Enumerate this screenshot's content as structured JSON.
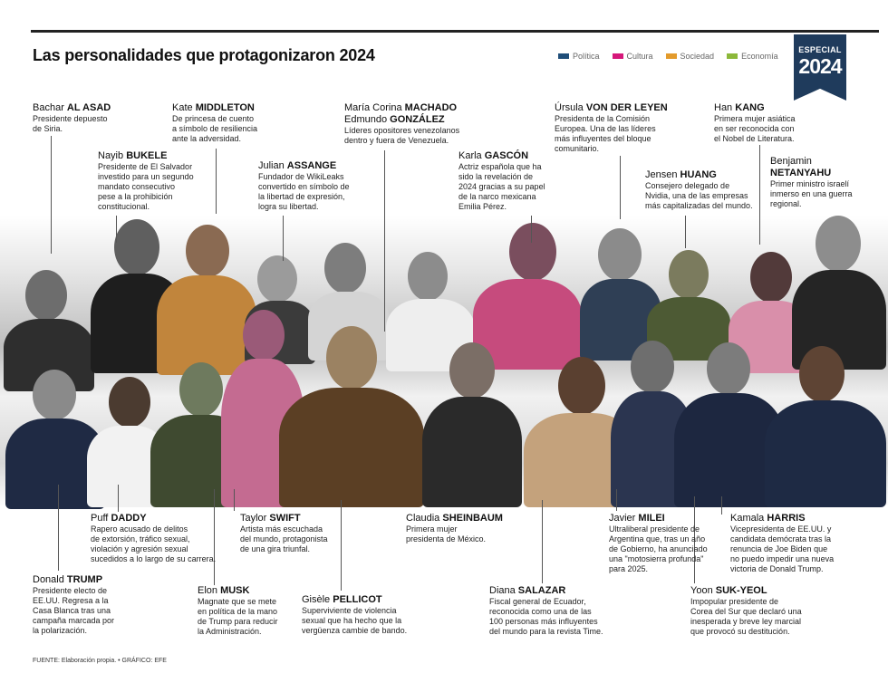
{
  "title": "Las personalidades que protagonizaron 2024",
  "legend": [
    {
      "label": "Política",
      "color": "#1f4e79"
    },
    {
      "label": "Cultura",
      "color": "#d6177a"
    },
    {
      "label": "Sociedad",
      "color": "#e39b2c"
    },
    {
      "label": "Economía",
      "color": "#8cb83a"
    }
  ],
  "badge": {
    "line1": "ESPECIAL",
    "line2": "2024"
  },
  "people": {
    "alasad": {
      "first": "Bachar ",
      "last": "AL ASAD",
      "desc": "Presidente depuesto\nde Siria."
    },
    "bukele": {
      "first": "Nayib ",
      "last": "BUKELE",
      "desc": "Presidente de El Salvador\ninvestido para un segundo\nmandato consecutivo\npese a la prohibición\nconstitucional."
    },
    "middleton": {
      "first": "Kate ",
      "last": "MIDDLETON",
      "desc": "De princesa de cuento\na símbolo de resiliencia\nante la adversidad."
    },
    "assange": {
      "first": "Julian ",
      "last": "ASSANGE",
      "desc": "Fundador de WikiLeaks\nconvertido en símbolo de\nla libertad de expresión,\nlogra su libertad."
    },
    "machado": {
      "first": "María Corina ",
      "last": "MACHADO",
      "first2": "Edmundo ",
      "last2": "GONZÁLEZ",
      "desc": "Líderes opositores venezolanos\ndentro y fuera de Venezuela."
    },
    "gascon": {
      "first": "Karla ",
      "last": "GASCÓN",
      "desc": "Actriz española que ha\nsido la revelación de\n2024 gracias a su papel\nde la narco mexicana\nEmilia Pérez."
    },
    "vonderleyen": {
      "first": "Úrsula ",
      "last": "VON DER LEYEN",
      "desc": "Presidenta de la Comisión\nEuropea. Una de las líderes\nmás influyentes del bloque\ncomunitario."
    },
    "huang": {
      "first": "Jensen ",
      "last": "HUANG",
      "desc": "Consejero delegado de\nNvidia, una de las empresas\nmás capitalizadas del mundo."
    },
    "hankang": {
      "first": "Han ",
      "last": "KANG",
      "desc": "Primera mujer asiática\nen ser reconocida con\nel Nobel de Literatura."
    },
    "netanyahu": {
      "first": "Benjamin",
      "last": "NETANYAHU",
      "desc": "Primer ministro israelí\ninmerso en una guerra\nregional."
    },
    "daddy": {
      "first": "Puff ",
      "last": "DADDY",
      "desc": "Rapero acusado de delitos\nde extorsión, tráfico sexual,\nviolación y agresión sexual\nsucedidos a lo largo de su carrera."
    },
    "trump": {
      "first": "Donald ",
      "last": "TRUMP",
      "desc": "Presidente electo de\nEE.UU. Regresa a la\nCasa Blanca tras una\ncampaña marcada por\nla polarización."
    },
    "musk": {
      "first": "Elon ",
      "last": "MUSK",
      "desc": "Magnate que se mete\nen política de la mano\nde Trump para reducir\nla Administración."
    },
    "swift": {
      "first": "Taylor ",
      "last": "SWIFT",
      "desc": "Artista más escuchada\ndel mundo, protagonista\nde una gira triunfal."
    },
    "pelicot": {
      "first": "Gisèle ",
      "last": "PELLICOT",
      "desc": "Superviviente de violencia\nsexual que ha hecho que la\nvergüenza cambie de bando."
    },
    "sheinbaum": {
      "first": "Claudia ",
      "last": "SHEINBAUM",
      "desc": "Primera mujer\npresidenta de México."
    },
    "salazar": {
      "first": "Diana ",
      "last": "SALAZAR",
      "desc": "Fiscal general de Ecuador,\nreconocida como una de las\n100 personas más influyentes\ndel mundo para la revista Time."
    },
    "milei": {
      "first": "Javier ",
      "last": "MILEI",
      "desc": "Ultraliberal presidente de\nArgentina que, tras un año\nde Gobierno, ha anunciado\nuna \"motosierra profunda\"\npara 2025."
    },
    "yoon": {
      "first": "Yoon ",
      "last": "SUK-YEOL",
      "desc": "Impopular presidente de\nCorea del Sur que declaró una\ninesperada y breve ley marcial\nque provocó su destitución."
    },
    "harris": {
      "first": "Kamala ",
      "last": "HARRIS",
      "desc": "Vicepresidenta de EE.UU. y\ncandidata demócrata tras la\nrenuncia de Joe Biden que\nno puedo impedir una nueva\nvictoria de Donald Trump."
    }
  },
  "footer": "FUENTE: Elaboración propia. • GRÁFICO: EFE"
}
